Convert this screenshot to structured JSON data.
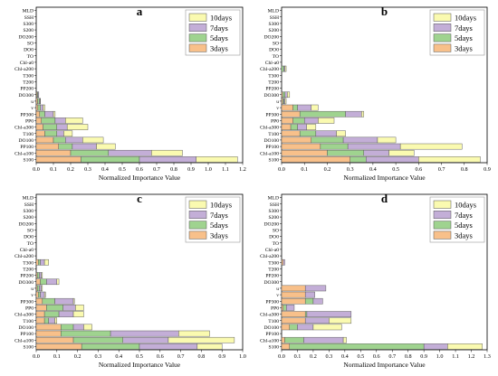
{
  "colors": {
    "3days": "#f8c08a",
    "5days": "#9fd38f",
    "7days": "#c3aed7",
    "10days": "#fafab0",
    "bar_edge": "#555555"
  },
  "chart_data": [
    {
      "type": "bar",
      "orientation": "horizontal",
      "stacked": true,
      "title": "a",
      "xlabel": "Normalized Importance Value",
      "categories": [
        "MLD",
        "SSH",
        "S300",
        "S200",
        "DO200",
        "SO",
        "DO0",
        "TO",
        "Chl-a0",
        "Chl-a200",
        "T300",
        "T200",
        "PP200",
        "DO300",
        "u",
        "v",
        "PP300",
        "PP0",
        "Chl-a300",
        "T100",
        "DO100",
        "PP100",
        "Chl-a100",
        "S100"
      ],
      "legend": [
        "10days",
        "7days",
        "5days",
        "3days"
      ],
      "legend_position": "top-right",
      "xlim": [
        0,
        1.2
      ],
      "xticks": [
        "0.0",
        "0.1",
        "0.2",
        "0.3",
        "0.4",
        "0.5",
        "0.6",
        "0.7",
        "0.8",
        "0.9",
        "1.0",
        "1.1",
        "1.2"
      ],
      "series": [
        {
          "name": "3days",
          "values": [
            0,
            0,
            0,
            0,
            0,
            0,
            0,
            0,
            0,
            0,
            0,
            0,
            0,
            0.005,
            0.008,
            0.01,
            0.02,
            0.03,
            0.04,
            0.05,
            0.1,
            0.13,
            0.2,
            0.26
          ]
        },
        {
          "name": "5days",
          "values": [
            0,
            0,
            0,
            0,
            0,
            0,
            0,
            0,
            0,
            0,
            0,
            0,
            0,
            0.005,
            0.01,
            0.015,
            0.03,
            0.08,
            0.08,
            0.07,
            0.07,
            0.08,
            0.22,
            0.34
          ]
        },
        {
          "name": "7days",
          "values": [
            0,
            0,
            0,
            0,
            0,
            0,
            0,
            0,
            0,
            0,
            0,
            0,
            0,
            0.005,
            0.005,
            0.015,
            0.05,
            0.06,
            0.06,
            0.04,
            0.1,
            0.14,
            0.25,
            0.33
          ]
        },
        {
          "name": "10days",
          "values": [
            0,
            0,
            0,
            0,
            0,
            0,
            0,
            0,
            0,
            0,
            0,
            0,
            0,
            0,
            0.002,
            0.01,
            0.01,
            0.1,
            0.12,
            0.05,
            0.12,
            0.11,
            0.18,
            0.24
          ]
        }
      ]
    },
    {
      "type": "bar",
      "orientation": "horizontal",
      "stacked": true,
      "title": "b",
      "xlabel": "Normalized Importance Value",
      "categories": [
        "MLD",
        "SSH",
        "S300",
        "S200",
        "DO200",
        "SO",
        "DO0",
        "TO",
        "Chl-a0",
        "Chl-a200",
        "T300",
        "T200",
        "PP200",
        "DO300",
        "u",
        "v",
        "PP300",
        "PP0",
        "Chl-a300",
        "T100",
        "DO100",
        "PP100",
        "Chl-a100",
        "S100"
      ],
      "legend": [
        "10days",
        "7days",
        "5days",
        "3days"
      ],
      "legend_position": "top-right",
      "xlim": [
        0,
        0.9
      ],
      "xticks": [
        "0.0",
        "0.1",
        "0.2",
        "0.3",
        "0.4",
        "0.5",
        "0.6",
        "0.7",
        "0.8",
        "0.9"
      ],
      "series": [
        {
          "name": "3days",
          "values": [
            0,
            0,
            0,
            0,
            0,
            0,
            0,
            0,
            0,
            0,
            0,
            0,
            0,
            0.005,
            0.005,
            0.05,
            0.08,
            0.05,
            0.04,
            0.08,
            0.13,
            0.17,
            0.2,
            0.3
          ]
        },
        {
          "name": "5days",
          "values": [
            0,
            0,
            0,
            0,
            0,
            0,
            0,
            0,
            0,
            0.01,
            0,
            0,
            0,
            0.01,
            0.005,
            0.02,
            0.2,
            0.05,
            0.03,
            0.07,
            0.14,
            0.12,
            0.16,
            0.07
          ]
        },
        {
          "name": "7days",
          "values": [
            0,
            0,
            0,
            0,
            0,
            0,
            0,
            0,
            0,
            0.005,
            0,
            0,
            0,
            0.01,
            0.005,
            0.06,
            0.07,
            0.06,
            0.04,
            0.09,
            0.15,
            0.23,
            0.11,
            0.23
          ]
        },
        {
          "name": "10days",
          "values": [
            0,
            0,
            0,
            0,
            0,
            0,
            0,
            0,
            0,
            0.005,
            0,
            0,
            0,
            0.01,
            0.005,
            0.03,
            0.01,
            0.07,
            0.04,
            0.04,
            0.08,
            0.27,
            0.11,
            0.27
          ]
        }
      ]
    },
    {
      "type": "bar",
      "orientation": "horizontal",
      "stacked": true,
      "title": "c",
      "xlabel": "Normalized Importance Value",
      "categories": [
        "MLD",
        "SSH",
        "S300",
        "S200",
        "DO200",
        "SO",
        "DO0",
        "TO",
        "Chl-a0",
        "Chl-a200",
        "T300",
        "T200",
        "PP200",
        "DO300",
        "u",
        "v",
        "PP300",
        "PP0",
        "Chl-a300",
        "T100",
        "DO100",
        "PP100",
        "Chl-a100",
        "S100"
      ],
      "legend": [
        "10days",
        "7days",
        "5days",
        "3days"
      ],
      "legend_position": "top-right",
      "xlim": [
        0,
        1.0
      ],
      "xticks": [
        "0.0",
        "0.1",
        "0.2",
        "0.3",
        "0.4",
        "0.5",
        "0.6",
        "0.7",
        "0.8",
        "0.9",
        "1.0"
      ],
      "series": [
        {
          "name": "3days",
          "values": [
            0,
            0,
            0,
            0,
            0,
            0,
            0,
            0,
            0,
            0,
            0.01,
            0,
            0.005,
            0.02,
            0.005,
            0.01,
            0.03,
            0.05,
            0.04,
            0.04,
            0.12,
            0.12,
            0.18,
            0.22
          ]
        },
        {
          "name": "5days",
          "values": [
            0,
            0,
            0,
            0,
            0,
            0,
            0,
            0,
            0,
            0,
            0.01,
            0,
            0.01,
            0.03,
            0.01,
            0.01,
            0.06,
            0.08,
            0.07,
            0.02,
            0.06,
            0.24,
            0.24,
            0.28
          ]
        },
        {
          "name": "7days",
          "values": [
            0,
            0,
            0,
            0,
            0,
            0,
            0,
            0,
            0,
            0,
            0.02,
            0,
            0.01,
            0.05,
            0.01,
            0.02,
            0.09,
            0.06,
            0.07,
            0.03,
            0.05,
            0.33,
            0.22,
            0.28
          ]
        },
        {
          "name": "10days",
          "values": [
            0,
            0,
            0,
            0,
            0,
            0,
            0,
            0,
            0,
            0,
            0.02,
            0,
            0.005,
            0.01,
            0.005,
            0.005,
            0.005,
            0.04,
            0.05,
            0.01,
            0.04,
            0.15,
            0.32,
            0.12
          ]
        }
      ]
    },
    {
      "type": "bar",
      "orientation": "horizontal",
      "stacked": true,
      "title": "d",
      "xlabel": "Normalized Importance Value",
      "categories": [
        "MLD",
        "SSH",
        "S300",
        "S200",
        "DO200",
        "SO",
        "DO0",
        "TO",
        "Chl-a0",
        "Chl-a200",
        "T300",
        "T200",
        "PP200",
        "DO300",
        "u",
        "v",
        "PP300",
        "PP0",
        "Chl-a300",
        "T100",
        "DO100",
        "PP100",
        "Chl-a100",
        "S100"
      ],
      "legend": [
        "10days",
        "7days",
        "5days",
        "3days"
      ],
      "legend_position": "top-right",
      "xlim": [
        0,
        1.3
      ],
      "xticks": [
        "0.0",
        "0.1",
        "0.2",
        "0.3",
        "0.4",
        "0.5",
        "0.6",
        "0.7",
        "0.8",
        "0.9",
        "1.0",
        "1.1",
        "1.2",
        "1.3"
      ],
      "series": [
        {
          "name": "3days",
          "values": [
            0,
            0,
            0,
            0,
            0,
            0,
            0,
            0,
            0,
            0,
            0.01,
            0,
            0,
            0,
            0.15,
            0.15,
            0.15,
            0.01,
            0.15,
            0.15,
            0.05,
            0,
            0.02,
            0.05
          ]
        },
        {
          "name": "5days",
          "values": [
            0,
            0,
            0,
            0,
            0,
            0,
            0,
            0,
            0,
            0,
            0,
            0,
            0,
            0,
            0,
            0,
            0.05,
            0.02,
            0.01,
            0,
            0.05,
            0,
            0.12,
            0.85
          ]
        },
        {
          "name": "7days",
          "values": [
            0,
            0,
            0,
            0,
            0,
            0,
            0,
            0,
            0,
            0,
            0.01,
            0,
            0,
            0,
            0.13,
            0.06,
            0.06,
            0.05,
            0.28,
            0.15,
            0.1,
            0,
            0.25,
            0.15
          ]
        },
        {
          "name": "10days",
          "values": [
            0,
            0,
            0,
            0,
            0,
            0,
            0,
            0,
            0,
            0,
            0,
            0,
            0,
            0,
            0,
            0,
            0,
            0,
            0,
            0.14,
            0.18,
            0,
            0.02,
            0.22
          ]
        }
      ]
    }
  ]
}
